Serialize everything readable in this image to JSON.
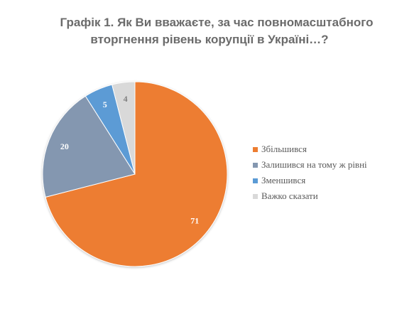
{
  "title": {
    "line1": "Графік 1. Як Ви вважаєте, за час повномасштабного",
    "line2": "вторгнення рівень корупції в Україні…?"
  },
  "chart_data": {
    "type": "pie",
    "title": "Графік 1. Як Ви вважаєте, за час повномасштабного вторгнення рівень корупції в Україні…?",
    "categories": [
      "Збільшився",
      "Залишився на тому ж рівні",
      "Зменшився",
      "Важко сказати"
    ],
    "values": [
      71,
      20,
      5,
      4
    ],
    "colors": [
      "#ed7d31",
      "#8497b0",
      "#5b9bd5",
      "#d9d9d9"
    ],
    "data_labels": [
      "71",
      "20",
      "5",
      "4"
    ],
    "legend_position": "right",
    "start": "top",
    "direction": "clockwise"
  }
}
